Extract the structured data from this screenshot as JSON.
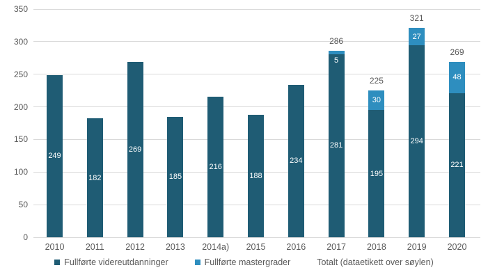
{
  "chart_data": {
    "type": "bar",
    "stacked": true,
    "title": "",
    "xlabel": "",
    "ylabel": "",
    "categories": [
      "2010",
      "2011",
      "2012",
      "2013",
      "2014a)",
      "2015",
      "2016",
      "2017",
      "2018",
      "2019",
      "2020"
    ],
    "series": [
      {
        "name": "Fullførte videreutdanninger",
        "color": "#1F5C74",
        "values": [
          249,
          182,
          269,
          185,
          216,
          188,
          234,
          281,
          195,
          294,
          221
        ]
      },
      {
        "name": "Fullførte mastergrader",
        "color": "#2E8EBF",
        "values": [
          null,
          null,
          null,
          null,
          null,
          null,
          null,
          5,
          30,
          27,
          48
        ]
      }
    ],
    "totals": [
      null,
      null,
      null,
      null,
      null,
      null,
      null,
      286,
      225,
      321,
      269
    ],
    "legend": [
      "Fullførte videreutdanninger",
      "Fullførte mastergrader",
      "Totalt (dataetikett over søylen)"
    ],
    "legend_position": "bottom",
    "ylim": [
      0,
      350
    ],
    "yticks": [
      0,
      50,
      100,
      150,
      200,
      250,
      300,
      350
    ],
    "grid": true,
    "colors": {
      "axis_text": "#595959",
      "gridline": "#D9D9D9",
      "bar_label": "#FFFFFF",
      "background": "#FFFFFF"
    }
  }
}
